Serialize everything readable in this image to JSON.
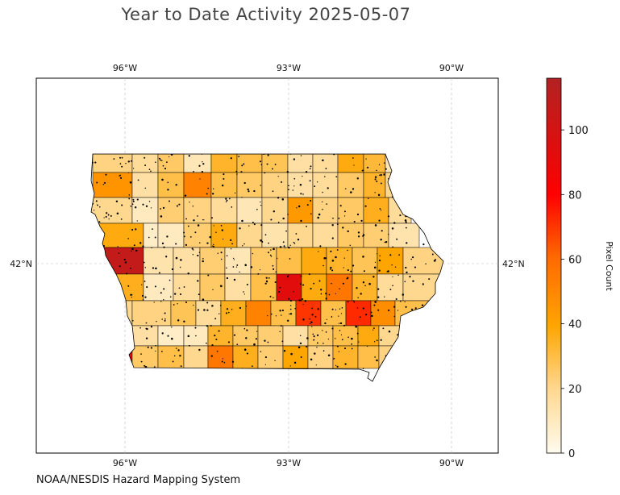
{
  "title": "Year to Date Activity 2025-05-07",
  "credit": "NOAA/NESDIS Hazard Mapping System",
  "map": {
    "lon_ticks": [
      "96°W",
      "93°W",
      "90°W"
    ],
    "lat_ticks": [
      "42°N"
    ],
    "region": "Iowa counties"
  },
  "colorbar": {
    "label": "Pixel Count",
    "ticks": [
      "0",
      "20",
      "40",
      "60",
      "80",
      "100"
    ],
    "min": 0,
    "max": 116,
    "colors": [
      "#fffbee",
      "#ffd890",
      "#ffa500",
      "#ff6000",
      "#ff0000",
      "#b22222"
    ]
  }
}
